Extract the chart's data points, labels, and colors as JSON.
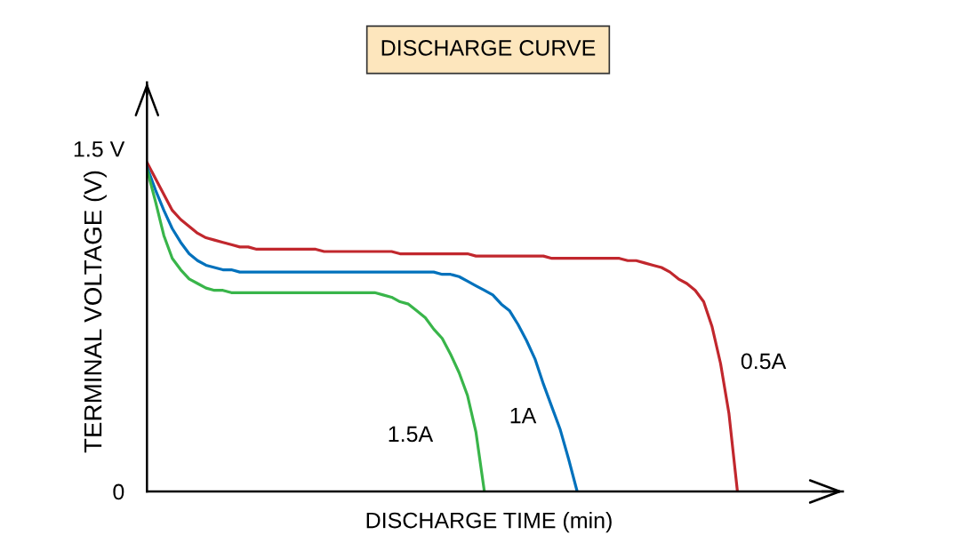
{
  "chart_data": {
    "type": "line",
    "title": "DISCHARGE CURVE",
    "xlabel": "DISCHARGE TIME (min)",
    "ylabel": "TERMINAL VOLTAGE (V)",
    "categories": [
      null,
      null,
      null,
      null,
      null,
      null,
      null,
      null,
      null,
      null,
      null,
      null,
      null,
      null,
      null,
      null,
      null,
      null,
      null,
      null,
      null,
      null,
      null,
      null,
      null,
      null,
      null,
      null,
      null,
      null,
      null,
      null,
      null,
      null,
      null,
      null,
      null,
      null,
      null,
      null,
      null,
      null,
      null,
      null,
      null,
      null,
      null,
      null,
      null,
      null,
      null,
      null,
      null,
      null,
      null,
      null,
      null,
      null,
      null,
      null,
      null,
      null,
      null,
      null,
      null,
      null,
      null,
      null,
      null,
      null,
      null,
      null,
      null,
      null,
      null,
      null,
      null,
      null,
      null,
      null,
      null,
      null,
      null
    ],
    "ylim": [
      0,
      1.79
    ],
    "yticks": [
      {
        "value": 0,
        "label": "0"
      },
      {
        "value": 1.5,
        "label": "1.5 V"
      }
    ],
    "tick_labels": "y",
    "series": [
      {
        "name": "0.5A",
        "color": "#c1272d",
        "values": [
          1.44,
          1.37,
          1.3,
          1.23,
          1.19,
          1.16,
          1.13,
          1.11,
          1.1,
          1.09,
          1.08,
          1.07,
          1.07,
          1.06,
          1.06,
          1.06,
          1.06,
          1.06,
          1.06,
          1.06,
          1.06,
          1.05,
          1.05,
          1.05,
          1.05,
          1.05,
          1.05,
          1.05,
          1.05,
          1.05,
          1.04,
          1.04,
          1.04,
          1.04,
          1.04,
          1.04,
          1.04,
          1.04,
          1.04,
          1.03,
          1.03,
          1.03,
          1.03,
          1.03,
          1.03,
          1.03,
          1.03,
          1.03,
          1.02,
          1.02,
          1.02,
          1.02,
          1.02,
          1.02,
          1.02,
          1.02,
          1.02,
          1.01,
          1.01,
          1.0,
          0.99,
          0.98,
          0.96,
          0.93,
          0.91,
          0.88,
          0.83,
          0.72,
          0.56,
          0.34,
          0,
          null,
          null,
          null,
          null,
          null,
          null,
          null,
          null,
          null,
          null,
          null,
          null
        ]
      },
      {
        "name": "1A",
        "color": "#0071bc",
        "values": [
          1.42,
          1.32,
          1.23,
          1.15,
          1.09,
          1.04,
          1.01,
          0.99,
          0.98,
          0.97,
          0.97,
          0.96,
          0.96,
          0.96,
          0.96,
          0.96,
          0.96,
          0.96,
          0.96,
          0.96,
          0.96,
          0.96,
          0.96,
          0.96,
          0.96,
          0.96,
          0.96,
          0.96,
          0.96,
          0.96,
          0.96,
          0.96,
          0.96,
          0.96,
          0.96,
          0.95,
          0.95,
          0.94,
          0.92,
          0.9,
          0.88,
          0.86,
          0.82,
          0.79,
          0.73,
          0.66,
          0.58,
          0.47,
          0.37,
          0.27,
          0.14,
          0,
          null,
          null,
          null,
          null,
          null,
          null,
          null,
          null,
          null,
          null,
          null,
          null,
          null,
          null,
          null,
          null,
          null,
          null,
          null,
          null,
          null,
          null,
          null,
          null,
          null,
          null,
          null,
          null,
          null,
          null,
          null
        ]
      },
      {
        "name": "1.5A",
        "color": "#39b54a",
        "values": [
          1.41,
          1.27,
          1.12,
          1.02,
          0.97,
          0.93,
          0.91,
          0.89,
          0.88,
          0.88,
          0.87,
          0.87,
          0.87,
          0.87,
          0.87,
          0.87,
          0.87,
          0.87,
          0.87,
          0.87,
          0.87,
          0.87,
          0.87,
          0.87,
          0.87,
          0.87,
          0.87,
          0.87,
          0.86,
          0.85,
          0.83,
          0.82,
          0.79,
          0.76,
          0.71,
          0.67,
          0.6,
          0.52,
          0.42,
          0.26,
          0,
          null,
          null,
          null,
          null,
          null,
          null,
          null,
          null,
          null,
          null,
          null,
          null,
          null,
          null,
          null,
          null,
          null,
          null,
          null,
          null,
          null,
          null,
          null,
          null,
          null,
          null,
          null,
          null,
          null,
          null,
          null,
          null,
          null,
          null,
          null,
          null,
          null,
          null,
          null,
          null,
          null,
          null
        ]
      }
    ]
  }
}
